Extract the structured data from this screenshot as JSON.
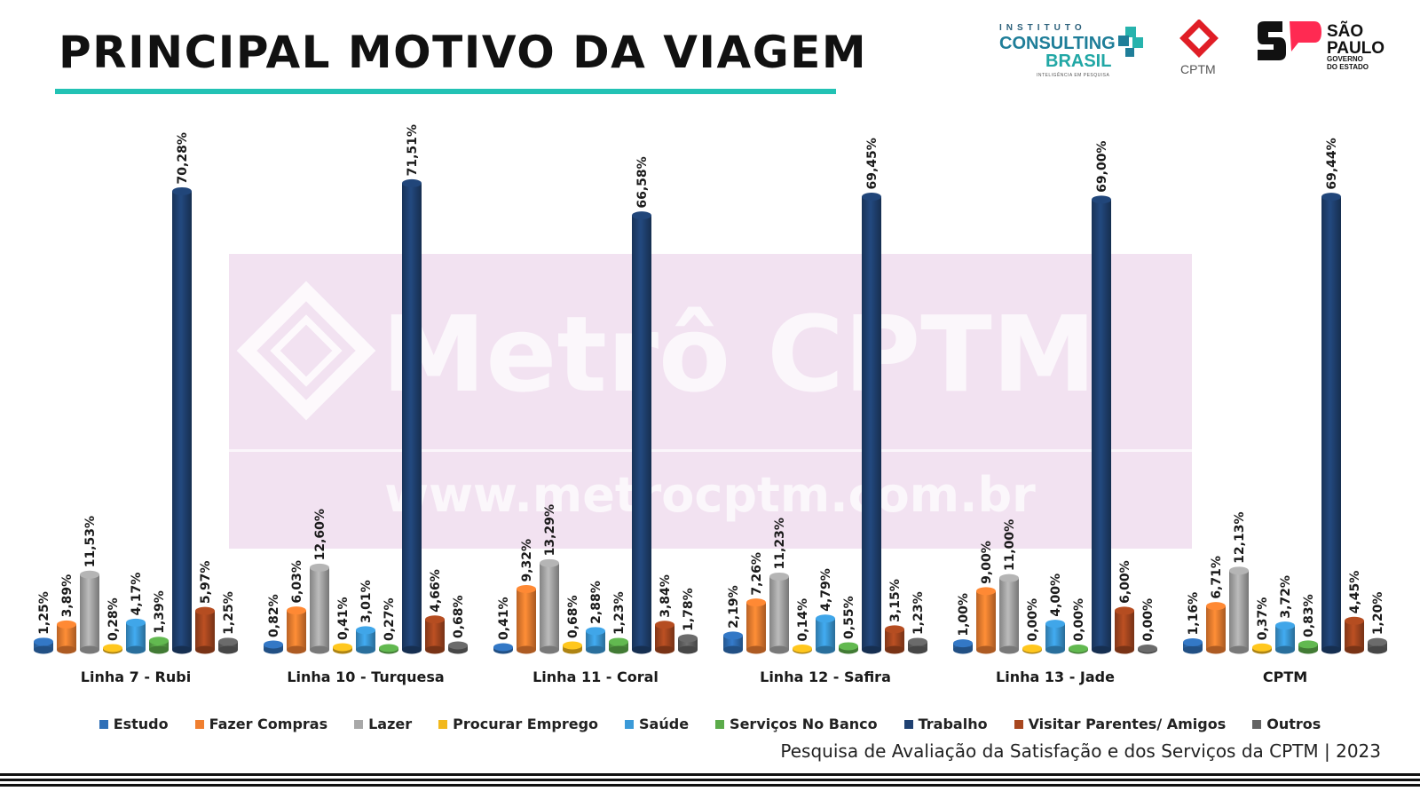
{
  "title": "PRINCIPAL MOTIVO DA VIAGEM",
  "accent_color": "#22c2b4",
  "logos": {
    "instituto": {
      "line1": "INSTITUTO",
      "line2": "CONSULTING",
      "line3": "BRASIL",
      "tagline": "INTELIGÊNCIA EM PESQUISA"
    },
    "cptm": {
      "label": "CPTM"
    },
    "sp": {
      "line1": "SÃO",
      "line2": "PAULO",
      "line3": "GOVERNO",
      "line4": "DO ESTADO"
    }
  },
  "watermark": {
    "brand": "Metrô CPTM",
    "url": "www.metrocptm.com.br"
  },
  "footer": "Pesquisa de Avaliação da Satisfação e dos Serviços da CPTM | 2023",
  "chart_data": {
    "type": "bar",
    "categories": [
      "Linha 7 - Rubi",
      "Linha 10 - Turquesa",
      "Linha 11 - Coral",
      "Linha 12 - Safira",
      "Linha 13 - Jade",
      "CPTM"
    ],
    "ylim": [
      0,
      75
    ],
    "legend_position": "bottom",
    "grid": false,
    "series": [
      {
        "name": "Estudo",
        "color": "#2f6fb7",
        "values": [
          1.25,
          0.82,
          0.41,
          2.19,
          1.0,
          1.16
        ],
        "labels": [
          "1,25%",
          "0,82%",
          "0,41%",
          "2,19%",
          "1,00%",
          "1,16%"
        ]
      },
      {
        "name": "Fazer Compras",
        "color": "#f07f30",
        "values": [
          3.89,
          6.03,
          9.32,
          7.26,
          9.0,
          6.71
        ],
        "labels": [
          "3,89%",
          "6,03%",
          "9,32%",
          "7,26%",
          "9,00%",
          "6,71%"
        ]
      },
      {
        "name": "Lazer",
        "color": "#a8a8a8",
        "values": [
          11.53,
          12.6,
          13.29,
          11.23,
          11.0,
          12.13
        ],
        "labels": [
          "11,53%",
          "12,60%",
          "13,29%",
          "11,23%",
          "11,00%",
          "12,13%"
        ]
      },
      {
        "name": "Procurar Emprego",
        "color": "#f2b81c",
        "values": [
          0.28,
          0.41,
          0.68,
          0.14,
          0.0,
          0.37
        ],
        "labels": [
          "0,28%",
          "0,41%",
          "0,68%",
          "0,14%",
          "0,00%",
          "0,37%"
        ]
      },
      {
        "name": "Saúde",
        "color": "#3b9ad8",
        "values": [
          4.17,
          3.01,
          2.88,
          4.79,
          4.0,
          3.72
        ],
        "labels": [
          "4,17%",
          "3,01%",
          "2,88%",
          "4,79%",
          "4,00%",
          "3,72%"
        ]
      },
      {
        "name": "Serviços No Banco",
        "color": "#5bab4a",
        "values": [
          1.39,
          0.27,
          1.23,
          0.55,
          0.0,
          0.83
        ],
        "labels": [
          "1,39%",
          "0,27%",
          "1,23%",
          "0,55%",
          "0,00%",
          "0,83%"
        ]
      },
      {
        "name": "Trabalho",
        "color": "#1f4171",
        "values": [
          70.28,
          71.51,
          66.58,
          69.45,
          69.0,
          69.44
        ],
        "labels": [
          "70,28%",
          "71,51%",
          "66,58%",
          "69,45%",
          "69,00%",
          "69,44%"
        ]
      },
      {
        "name": "Visitar Parentes/ Amigos",
        "color": "#a8471f",
        "values": [
          5.97,
          4.66,
          3.84,
          3.15,
          6.0,
          4.45
        ],
        "labels": [
          "5,97%",
          "4,66%",
          "3,84%",
          "3,15%",
          "6,00%",
          "4,45%"
        ]
      },
      {
        "name": "Outros",
        "color": "#636363",
        "values": [
          1.25,
          0.68,
          1.78,
          1.23,
          0.0,
          1.2
        ],
        "labels": [
          "1,25%",
          "0,68%",
          "1,78%",
          "1,23%",
          "0,00%",
          "1,20%"
        ]
      }
    ]
  }
}
